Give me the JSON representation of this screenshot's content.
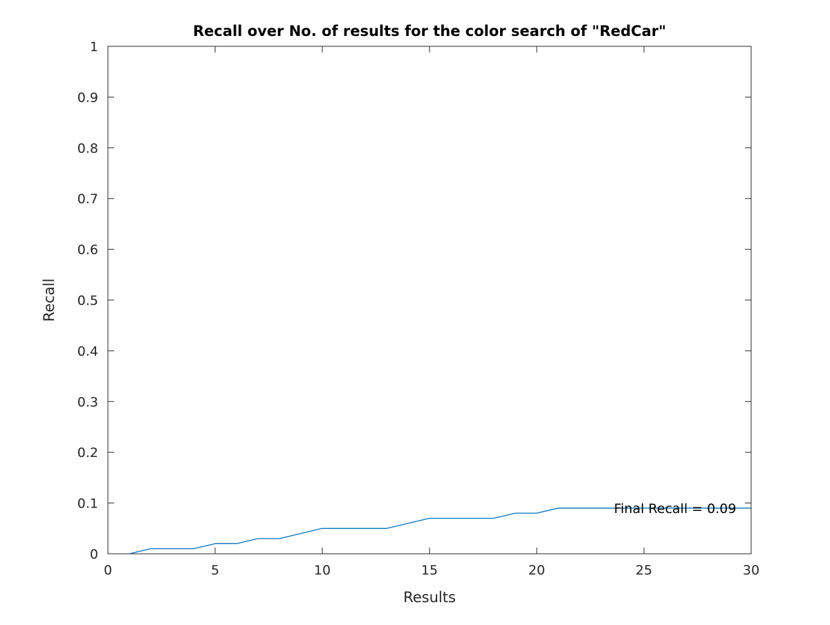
{
  "chart_data": {
    "type": "line",
    "title": "Recall over No. of results for the color search of \"RedCar\"",
    "xlabel": "Results",
    "ylabel": "Recall",
    "xlim": [
      0,
      30
    ],
    "ylim": [
      0,
      1
    ],
    "xticks": [
      0,
      5,
      10,
      15,
      20,
      25,
      30
    ],
    "yticks": [
      0,
      0.1,
      0.2,
      0.3,
      0.4,
      0.5,
      0.6,
      0.7,
      0.8,
      0.9,
      1
    ],
    "xtick_labels": [
      "0",
      "5",
      "10",
      "15",
      "20",
      "25",
      "30"
    ],
    "ytick_labels": [
      "0",
      "0.1",
      "0.2",
      "0.3",
      "0.4",
      "0.5",
      "0.6",
      "0.7",
      "0.8",
      "0.9",
      "1"
    ],
    "grid": false,
    "series": [
      {
        "color": "#0072bd",
        "x": [
          1,
          2,
          3,
          4,
          5,
          6,
          7,
          8,
          9,
          10,
          11,
          12,
          13,
          14,
          15,
          16,
          17,
          18,
          19,
          20,
          21,
          22,
          23,
          24,
          25,
          26,
          27,
          28,
          29,
          30
        ],
        "y": [
          0,
          0.01,
          0.01,
          0.01,
          0.02,
          0.02,
          0.03,
          0.03,
          0.04,
          0.05,
          0.05,
          0.05,
          0.05,
          0.06,
          0.07,
          0.07,
          0.07,
          0.07,
          0.08,
          0.08,
          0.09,
          0.09,
          0.09,
          0.09,
          0.09,
          0.09,
          0.09,
          0.09,
          0.09,
          0.09
        ]
      }
    ],
    "annotations": [
      {
        "text": "Final Recall = 0.09",
        "x": 23.6,
        "y": 0.09
      }
    ]
  }
}
